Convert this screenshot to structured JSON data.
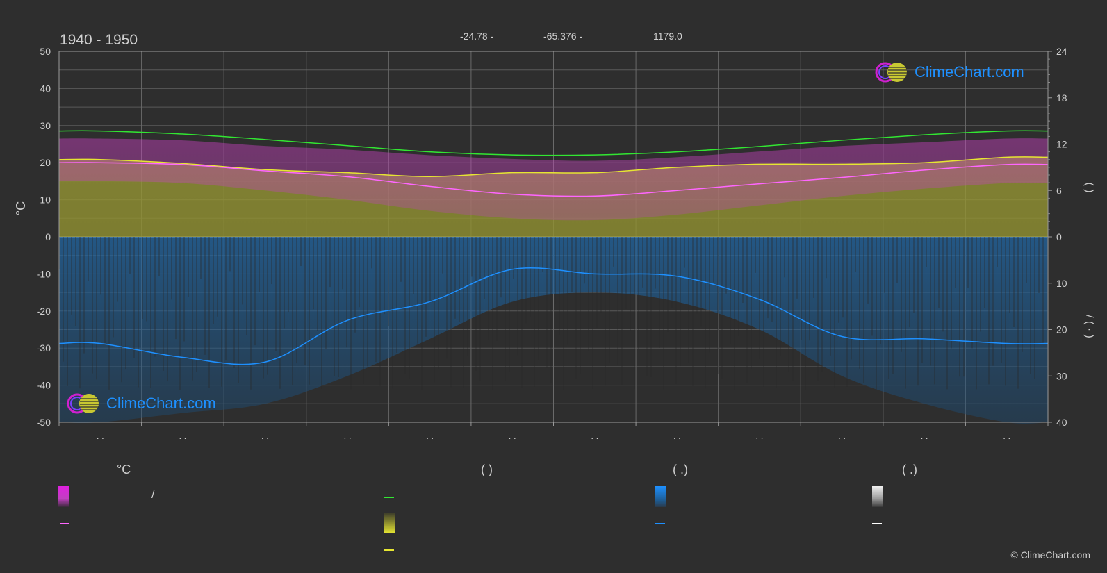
{
  "header": {
    "title": "1940 - 1950",
    "latitude": "-24.78 -",
    "longitude": "-65.376 -",
    "elevation": "1179.0"
  },
  "watermark": "ClimeChart.com",
  "copyright": "© ClimeChart.com",
  "legend": {
    "temp_unit": "°C",
    "col2_head": "(            )",
    "col3_head": "(   .)",
    "col4_head": "(   .)",
    "slash": "/"
  },
  "colors": {
    "background": "#2e2e2e",
    "temp_band": "#c837c8",
    "sunshine_band": "#a6a639",
    "precip_band": "#1e6bb0",
    "daylight_line": "#32e632",
    "sunshine_line": "#e6e632",
    "mean_temp_line": "#ff66ff",
    "precip_line": "#1e90ff",
    "snow_line": "#ffffff"
  },
  "chart_data": {
    "type": "line",
    "months": 12,
    "x_tick_labels": [
      ". .",
      ". .",
      ". .",
      ". .",
      ". .",
      ". .",
      ". .",
      ". .",
      ". .",
      ". .",
      ". .",
      ". ."
    ],
    "y_left": {
      "label": "°C",
      "range": [
        -50,
        50
      ],
      "ticks": [
        50,
        40,
        30,
        20,
        10,
        0,
        -10,
        -20,
        -30,
        -40,
        -50
      ]
    },
    "y_right_top": {
      "range": [
        0,
        24
      ],
      "ticks": [
        24,
        18,
        12,
        6,
        0
      ],
      "label": "(        )"
    },
    "y_right_bottom": {
      "range": [
        0,
        40
      ],
      "ticks": [
        10,
        20,
        30,
        40
      ],
      "label": "/   (  ·  )"
    },
    "series": [
      {
        "values_hours": [
          13.7,
          13.3,
          12.6,
          11.8,
          11.0,
          10.6,
          10.6,
          11.0,
          11.7,
          12.5,
          13.2,
          13.7
        ]
      },
      {
        "values_hours": [
          10.0,
          9.5,
          8.7,
          8.3,
          7.8,
          8.3,
          8.3,
          9.0,
          9.4,
          9.4,
          9.6,
          10.3
        ]
      },
      {
        "values_celsius": [
          20.0,
          19.5,
          17.8,
          16.2,
          13.6,
          11.5,
          11.0,
          12.5,
          14.3,
          16.0,
          18.0,
          19.5
        ]
      },
      {
        "values_mm": [
          23.0,
          26.0,
          27.0,
          18.0,
          14.0,
          7.0,
          8.0,
          8.5,
          13.5,
          21.5,
          22.0,
          23.0
        ]
      }
    ],
    "temp_band": {
      "max_celsius": [
        26.5,
        26.0,
        24.5,
        23.5,
        22.0,
        21.0,
        20.5,
        21.5,
        23.0,
        24.5,
        25.5,
        26.5
      ],
      "min_celsius": [
        15.0,
        14.5,
        12.5,
        10.0,
        7.0,
        5.0,
        4.5,
        6.0,
        8.5,
        11.0,
        13.0,
        14.5
      ]
    },
    "precip_band_mm": [
      40,
      38,
      36,
      30,
      22,
      14,
      12,
      14,
      20,
      30,
      36,
      40
    ]
  }
}
